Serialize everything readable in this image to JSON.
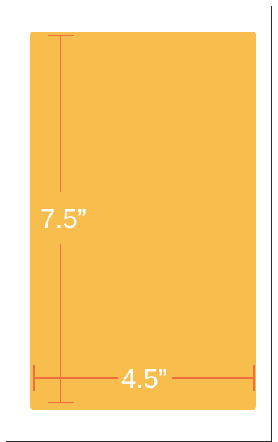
{
  "colors": {
    "panel_fill": "#F8BE4D",
    "dimension_line": "#EE6E3D",
    "label_text": "#FFFFFF",
    "frame_border": "#2B2B2B"
  },
  "dimensions": {
    "height_label": "7.5”",
    "width_label": "4.5”"
  }
}
